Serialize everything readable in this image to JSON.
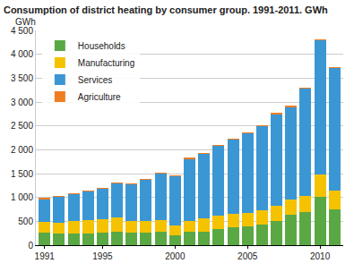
{
  "chart_data": {
    "type": "bar",
    "title": "Consumption of district heating by consumer group. 1991-2011. GWh",
    "y_label": "GWh",
    "stacked": true,
    "grid": true,
    "legend": "upper left",
    "categories": [
      "1991",
      null,
      null,
      null,
      "1995",
      null,
      null,
      null,
      null,
      "2000",
      null,
      null,
      null,
      null,
      "2005",
      null,
      null,
      null,
      null,
      "2010",
      null
    ],
    "series": [
      {
        "name": "Households",
        "color": "#5aa843",
        "values": [
          270,
          250,
          250,
          240,
          270,
          280,
          260,
          260,
          280,
          200,
          280,
          290,
          330,
          370,
          390,
          430,
          500,
          640,
          690,
          1020,
          750
        ]
      },
      {
        "name": "Manufacturing",
        "color": "#f5c200",
        "values": [
          210,
          220,
          260,
          290,
          280,
          300,
          240,
          240,
          240,
          220,
          220,
          270,
          290,
          280,
          290,
          310,
          320,
          320,
          350,
          470,
          400
        ]
      },
      {
        "name": "Services",
        "color": "#3a97d4",
        "values": [
          490,
          550,
          560,
          595,
          635,
          715,
          775,
          875,
          985,
          1035,
          1315,
          1365,
          1465,
          1575,
          1665,
          1755,
          1935,
          1945,
          2245,
          2805,
          2565
        ]
      },
      {
        "name": "Agriculture",
        "color": "#ef7d22",
        "values": [
          20,
          10,
          10,
          5,
          5,
          5,
          5,
          5,
          5,
          5,
          5,
          5,
          5,
          5,
          5,
          5,
          5,
          5,
          5,
          5,
          5
        ]
      }
    ],
    "ylim": [
      0,
      4500
    ],
    "yticks": [
      0,
      500,
      {
        "value": 1000,
        "label": "1 000"
      },
      {
        "value": 1500,
        "label": "1 500"
      },
      {
        "value": 2000,
        "label": "2 000"
      },
      {
        "value": 2500,
        "label": "2 500"
      },
      {
        "value": 3000,
        "label": "3 000"
      },
      {
        "value": 3500,
        "label": "3 500"
      },
      {
        "value": 4000,
        "label": "4 000"
      },
      {
        "value": 4500,
        "label": "4 500"
      }
    ]
  }
}
